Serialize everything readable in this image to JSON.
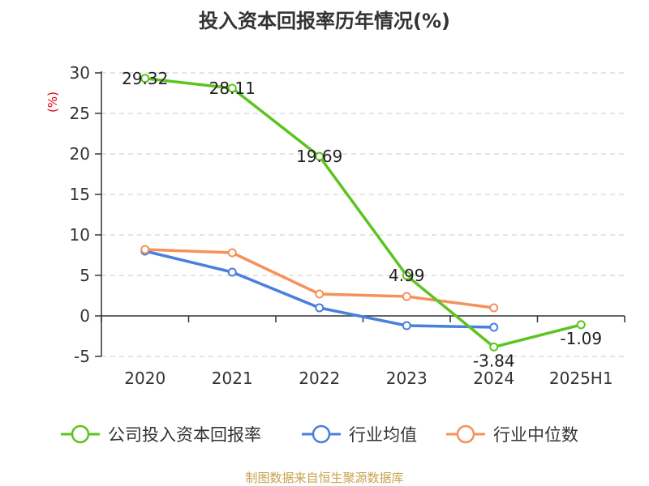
{
  "chart_data": {
    "type": "line",
    "title": "投入资本回报率历年情况(%)",
    "ylabel": "(%)",
    "categories": [
      "2020",
      "2021",
      "2022",
      "2023",
      "2024",
      "2025H1"
    ],
    "ylim": [
      -5,
      30
    ],
    "yticks": [
      30,
      25,
      20,
      15,
      10,
      5,
      0,
      -5
    ],
    "grid": true,
    "legend_position": "bottom",
    "series": [
      {
        "name": "公司投入资本回报率",
        "color": "#5cc41e",
        "values": [
          29.32,
          28.11,
          19.69,
          4.99,
          -3.84,
          -1.09
        ],
        "labels": [
          "29.32",
          "28.11",
          "19.69",
          "4.99",
          "-3.84",
          "-1.09"
        ]
      },
      {
        "name": "行业均值",
        "color": "#4a7fdc",
        "values": [
          8.0,
          5.4,
          1.0,
          -1.2,
          -1.4,
          null
        ]
      },
      {
        "name": "行业中位数",
        "color": "#f5915a",
        "values": [
          8.2,
          7.8,
          2.7,
          2.4,
          1.0,
          null
        ]
      }
    ]
  },
  "source": "制图数据来自恒生聚源数据库"
}
